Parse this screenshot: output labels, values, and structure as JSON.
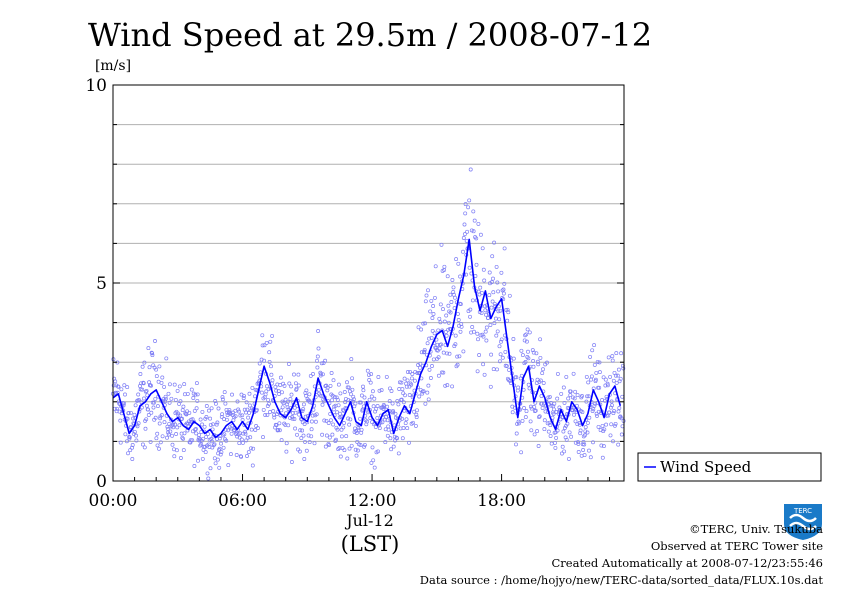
{
  "chart_data": {
    "type": "line",
    "title": "Wind Speed at 29.5m / 2008-07-12",
    "ylabel": "[m/s]",
    "ylim": [
      0,
      10
    ],
    "yticks": [
      "0",
      "5",
      "10"
    ],
    "xlim": [
      0,
      23.67
    ],
    "xticks": [
      {
        "value": 0,
        "label": "00:00"
      },
      {
        "value": 6,
        "label": "06:00"
      },
      {
        "value": 12,
        "label": "12:00"
      },
      {
        "value": 18,
        "label": "18:00"
      }
    ],
    "xdate_label": "Jul-12",
    "xlabel": "(LST)",
    "grid": true,
    "legend_position": "right",
    "series": [
      {
        "name": "Wind Speed",
        "color": "#0000ff",
        "x": [
          0.0,
          0.25,
          0.5,
          0.75,
          1.0,
          1.25,
          1.5,
          1.75,
          2.0,
          2.25,
          2.5,
          2.75,
          3.0,
          3.25,
          3.5,
          3.75,
          4.0,
          4.25,
          4.5,
          4.75,
          5.0,
          5.25,
          5.5,
          5.75,
          6.0,
          6.25,
          6.5,
          6.75,
          7.0,
          7.25,
          7.5,
          7.75,
          8.0,
          8.25,
          8.5,
          8.75,
          9.0,
          9.25,
          9.5,
          9.75,
          10.0,
          10.25,
          10.5,
          10.75,
          11.0,
          11.25,
          11.5,
          11.75,
          12.0,
          12.25,
          12.5,
          12.75,
          13.0,
          13.25,
          13.5,
          13.75,
          14.0,
          14.25,
          14.5,
          14.75,
          15.0,
          15.25,
          15.5,
          15.75,
          16.0,
          16.25,
          16.5,
          16.75,
          17.0,
          17.25,
          17.5,
          17.75,
          18.0,
          18.25,
          18.5,
          18.75,
          19.0,
          19.25,
          19.5,
          19.75,
          20.0,
          20.25,
          20.5,
          20.75,
          21.0,
          21.25,
          21.5,
          21.75,
          22.0,
          22.25,
          22.5,
          22.75,
          23.0,
          23.25,
          23.5
        ],
        "values": [
          2.1,
          2.2,
          1.7,
          1.2,
          1.4,
          1.9,
          2.0,
          2.2,
          2.3,
          2.0,
          1.7,
          1.5,
          1.6,
          1.4,
          1.3,
          1.5,
          1.4,
          1.2,
          1.3,
          1.1,
          1.2,
          1.4,
          1.5,
          1.3,
          1.5,
          1.3,
          1.7,
          2.3,
          2.9,
          2.5,
          2.0,
          1.7,
          1.6,
          1.8,
          2.1,
          1.6,
          1.5,
          1.9,
          2.6,
          2.2,
          1.9,
          1.6,
          1.4,
          1.7,
          2.0,
          1.5,
          1.4,
          2.0,
          1.6,
          1.4,
          1.7,
          1.8,
          1.2,
          1.6,
          1.9,
          1.7,
          2.2,
          2.7,
          3.0,
          3.4,
          3.7,
          3.8,
          3.4,
          3.9,
          4.6,
          5.2,
          6.1,
          4.9,
          4.3,
          4.8,
          4.1,
          4.4,
          4.6,
          3.6,
          2.6,
          1.6,
          2.6,
          2.9,
          2.0,
          2.4,
          2.1,
          1.6,
          1.3,
          1.8,
          1.5,
          2.0,
          1.8,
          1.4,
          1.7,
          2.3,
          2.0,
          1.6,
          2.2,
          2.4,
          1.9
        ]
      }
    ]
  },
  "credits": [
    "©TERC, Univ. Tsukuba",
    "Observed at TERC Tower site",
    "Created Automatically at 2008-07-12/23:55:46",
    "Data source : /home/hojyo/new/TERC-data/sorted_data/FLUX.10s.dat"
  ],
  "logo_text": "TERC"
}
